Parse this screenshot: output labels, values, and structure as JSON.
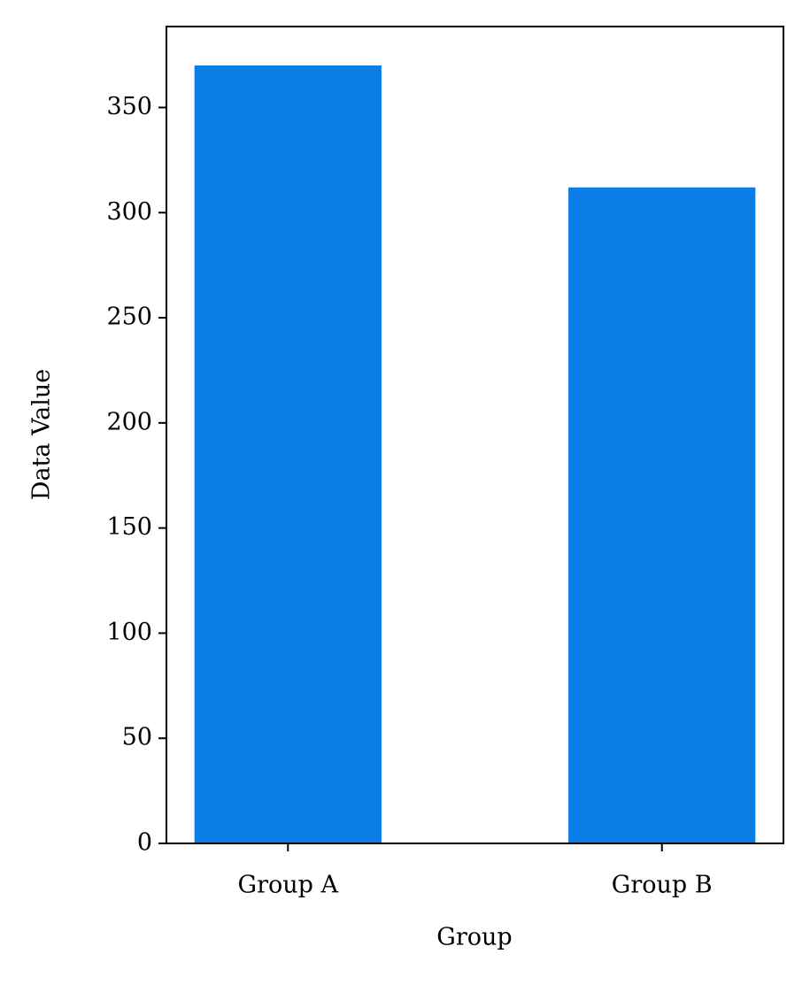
{
  "chart_data": {
    "type": "bar",
    "x_label": "Group",
    "y_label": "Data Value",
    "categories": [
      "Group A",
      "Group B"
    ],
    "values": [
      370,
      312
    ],
    "color": "#0a7de6",
    "ylim": [
      0,
      388.5
    ],
    "yticks": [
      0,
      50,
      100,
      150,
      200,
      250,
      300,
      350
    ],
    "grid": false
  }
}
